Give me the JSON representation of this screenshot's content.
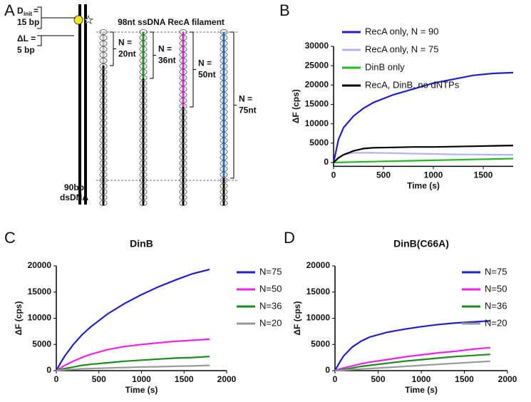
{
  "panel_labels": [
    "A",
    "B",
    "C",
    "D"
  ],
  "diagram": {
    "title": "98nt ssDNA RecA filament",
    "d_init": "D",
    "d_init_sub": "init",
    "d_init_eq": "=",
    "d_init_value": "15 bp",
    "delta_l": "ΔL =",
    "delta_l_value": "5 bp",
    "dsdna": [
      "90bp",
      "dsDNA"
    ],
    "segments": [
      {
        "label": [
          "N =",
          "20nt"
        ]
      },
      {
        "label": [
          "N =",
          "36nt"
        ]
      },
      {
        "label": [
          "N =",
          "50nt"
        ]
      },
      {
        "label": [
          "N =",
          "75nt"
        ]
      }
    ]
  },
  "chart_data": [
    {
      "type": "line",
      "x_label": "Time (s)",
      "y_label": "ΔF (cps)",
      "legend": "upper left",
      "x": [
        0,
        50,
        100,
        200,
        300,
        400,
        600,
        800,
        1000,
        1200,
        1400,
        1600,
        1800
      ],
      "xlim": [
        0,
        1800
      ],
      "xticks": [
        0,
        500,
        1000,
        1500
      ],
      "ylim": [
        -1000,
        30000
      ],
      "yticks": [
        0,
        5000,
        10000,
        15000,
        20000,
        25000,
        30000
      ],
      "series": [
        {
          "name": "RecA only, N = 90",
          "color": "#1f1fcf",
          "values": [
            0,
            6000,
            9000,
            12000,
            14000,
            15500,
            17500,
            19000,
            20500,
            21500,
            22500,
            23000,
            23200
          ]
        },
        {
          "name": "RecA only, N = 75",
          "color": "#b4b4ec",
          "values": [
            0,
            1200,
            2000,
            2500,
            2500,
            2500,
            2400,
            2300,
            2200,
            2100,
            2050,
            2000,
            2000
          ]
        },
        {
          "name": "DinB only",
          "color": "#22bb22",
          "values": [
            0,
            30,
            60,
            120,
            170,
            230,
            340,
            450,
            560,
            670,
            780,
            890,
            1000
          ]
        },
        {
          "name": "RecA, DinB, no dNTPs",
          "color": "#000000",
          "values": [
            0,
            1200,
            2000,
            3000,
            3600,
            3800,
            3900,
            4000,
            4000,
            4100,
            4200,
            4300,
            4400
          ]
        }
      ]
    },
    {
      "type": "line",
      "title": "DinB",
      "x_label": "Time (s)",
      "y_label": "ΔF (cps)",
      "legend": "right",
      "x": [
        0,
        50,
        100,
        200,
        300,
        400,
        600,
        800,
        1000,
        1200,
        1400,
        1600,
        1800
      ],
      "xlim": [
        0,
        2000
      ],
      "xticks": [
        0,
        500,
        1000,
        1500,
        2000
      ],
      "ylim": [
        0,
        20000
      ],
      "yticks": [
        0,
        5000,
        10000,
        15000,
        20000
      ],
      "series": [
        {
          "name": "N=75",
          "color": "#1f1fcf",
          "values": [
            0,
            1500,
            2800,
            5000,
            6800,
            8300,
            10800,
            12800,
            14500,
            16000,
            17300,
            18500,
            19300
          ]
        },
        {
          "name": "N=50",
          "color": "#ee22ee",
          "values": [
            0,
            500,
            1000,
            1800,
            2500,
            3100,
            4000,
            4600,
            5000,
            5300,
            5600,
            5800,
            6000
          ]
        },
        {
          "name": "N=36",
          "color": "#1a8c1a",
          "values": [
            0,
            200,
            400,
            700,
            1000,
            1200,
            1500,
            1800,
            2000,
            2200,
            2400,
            2500,
            2700
          ]
        },
        {
          "name": "N=20",
          "color": "#999999",
          "values": [
            0,
            100,
            150,
            250,
            350,
            400,
            500,
            600,
            700,
            750,
            850,
            900,
            1000
          ]
        }
      ]
    },
    {
      "type": "line",
      "title": "DinB(C66A)",
      "x_label": "Time (s)",
      "y_label": "ΔF (cps)",
      "legend": "upper right",
      "x": [
        0,
        50,
        100,
        200,
        300,
        400,
        600,
        800,
        1000,
        1200,
        1400,
        1600,
        1800
      ],
      "xlim": [
        0,
        2000
      ],
      "xticks": [
        0,
        500,
        1000,
        1500,
        2000
      ],
      "ylim": [
        0,
        20000
      ],
      "yticks": [
        0,
        5000,
        10000,
        15000,
        20000
      ],
      "series": [
        {
          "name": "N=75",
          "color": "#1f1fcf",
          "values": [
            0,
            1500,
            2800,
            4500,
            5600,
            6400,
            7300,
            7900,
            8400,
            8800,
            9100,
            9300,
            9500
          ]
        },
        {
          "name": "N=50",
          "color": "#ee22ee",
          "values": [
            0,
            300,
            500,
            900,
            1300,
            1600,
            2100,
            2600,
            3000,
            3400,
            3700,
            4100,
            4400
          ]
        },
        {
          "name": "N=36",
          "color": "#1a8c1a",
          "values": [
            0,
            100,
            200,
            500,
            800,
            1000,
            1400,
            1800,
            2100,
            2400,
            2700,
            2900,
            3100
          ]
        },
        {
          "name": "N=20",
          "color": "#999999",
          "values": [
            0,
            50,
            100,
            200,
            300,
            400,
            600,
            800,
            1000,
            1200,
            1400,
            1600,
            1800
          ]
        }
      ]
    }
  ]
}
